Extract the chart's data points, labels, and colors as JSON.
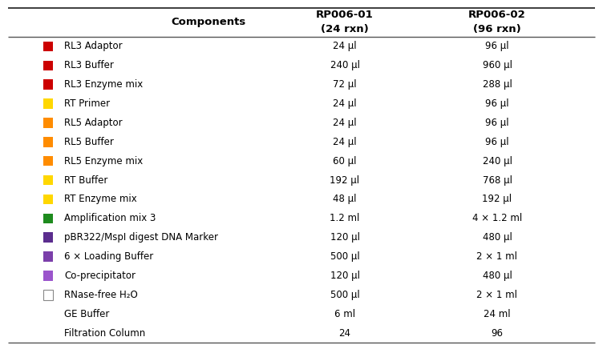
{
  "header_col1": "Components",
  "header_col2": "RP006-01\n(24 rxn)",
  "header_col3": "RP006-02\n(96 rxn)",
  "rows": [
    {
      "color": "#CC0000",
      "name": "RL3 Adaptor",
      "rp01": "24 μl",
      "rp02": "96 μl",
      "outline": false
    },
    {
      "color": "#CC0000",
      "name": "RL3 Buffer",
      "rp01": "240 μl",
      "rp02": "960 μl",
      "outline": false
    },
    {
      "color": "#CC0000",
      "name": "RL3 Enzyme mix",
      "rp01": "72 μl",
      "rp02": "288 μl",
      "outline": false
    },
    {
      "color": "#FFD700",
      "name": "RT Primer",
      "rp01": "24 μl",
      "rp02": "96 μl",
      "outline": false
    },
    {
      "color": "#FF8C00",
      "name": "RL5 Adaptor",
      "rp01": "24 μl",
      "rp02": "96 μl",
      "outline": false
    },
    {
      "color": "#FF8C00",
      "name": "RL5 Buffer",
      "rp01": "24 μl",
      "rp02": "96 μl",
      "outline": false
    },
    {
      "color": "#FF8C00",
      "name": "RL5 Enzyme mix",
      "rp01": "60 μl",
      "rp02": "240 μl",
      "outline": false
    },
    {
      "color": "#FFD700",
      "name": "RT Buffer",
      "rp01": "192 μl",
      "rp02": "768 μl",
      "outline": false
    },
    {
      "color": "#FFD700",
      "name": "RT Enzyme mix",
      "rp01": "48 μl",
      "rp02": "192 μl",
      "outline": false
    },
    {
      "color": "#1E8B1E",
      "name": "Amplification mix 3",
      "rp01": "1.2 ml",
      "rp02": "4 × 1.2 ml",
      "outline": false
    },
    {
      "color": "#5B2D8E",
      "name": "pBR322/MspI digest DNA Marker",
      "rp01": "120 μl",
      "rp02": "480 μl",
      "outline": false
    },
    {
      "color": "#7B3FAA",
      "name": "6 × Loading Buffer",
      "rp01": "500 μl",
      "rp02": "2 × 1 ml",
      "outline": false
    },
    {
      "color": "#9B55CC",
      "name": "Co-precipitator",
      "rp01": "120 μl",
      "rp02": "480 μl",
      "outline": false
    },
    {
      "color": "#FFFFFF",
      "name": "RNase-free H₂O",
      "rp01": "500 μl",
      "rp02": "2 × 1 ml",
      "outline": true
    },
    {
      "color": null,
      "name": "GE Buffer",
      "rp01": "6 ml",
      "rp02": "24 ml",
      "outline": false
    },
    {
      "color": null,
      "name": "Filtration Column",
      "rp01": "24",
      "rp02": "96",
      "outline": false
    }
  ],
  "bg_color": "#FFFFFF",
  "text_color": "#000000",
  "font_size": 8.5,
  "header_font_size": 9.5
}
